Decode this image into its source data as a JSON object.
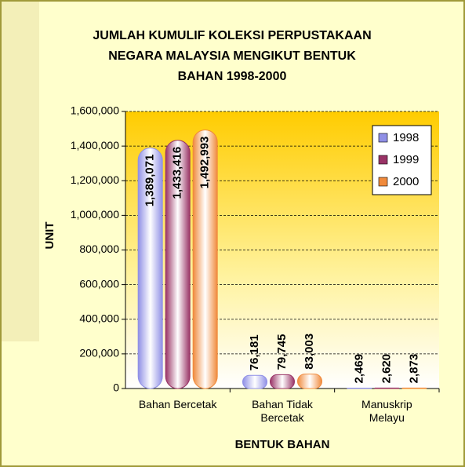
{
  "chart_data": {
    "type": "bar",
    "title": [
      "JUMLAH KUMULIF KOLEKSI PERPUSTAKAAN",
      "NEGARA MALAYSIA MENGIKUT BENTUK",
      "BAHAN 1998-2000"
    ],
    "x_label": "BENTUK BAHAN",
    "y_label": "UNIT",
    "categories": [
      "Bahan Bercetak",
      "Bahan Tidak Bercetak",
      "Manuskrip Melayu"
    ],
    "series": [
      {
        "name": "1998",
        "color": "#8f8fe6",
        "values": [
          1389071,
          76181,
          2469
        ],
        "value_labels": [
          "1,389,071",
          "76,181",
          "2,469"
        ]
      },
      {
        "name": "1999",
        "color": "#993366",
        "values": [
          1433416,
          79745,
          2620
        ],
        "value_labels": [
          "1,433,416",
          "79,745",
          "2,620"
        ]
      },
      {
        "name": "2000",
        "color": "#f08a3c",
        "values": [
          1492993,
          83003,
          2873
        ],
        "value_labels": [
          "1,492,993",
          "83,003",
          "2,873"
        ]
      }
    ],
    "ylim": [
      0,
      1600000
    ],
    "yticks": [
      0,
      {
        "value": 200000,
        "label": "200,000"
      },
      {
        "value": 400000,
        "label": "400,000"
      },
      {
        "value": 600000,
        "label": "600,000"
      },
      {
        "value": 800000,
        "label": "800,000"
      },
      {
        "value": 1000000,
        "label": "1,000,000"
      },
      {
        "value": 1200000,
        "label": "1,200,000"
      },
      {
        "value": 1400000,
        "label": "1,400,000"
      },
      {
        "value": 1600000,
        "label": "1,600,000"
      }
    ],
    "grid": true,
    "legend": "upper right"
  }
}
